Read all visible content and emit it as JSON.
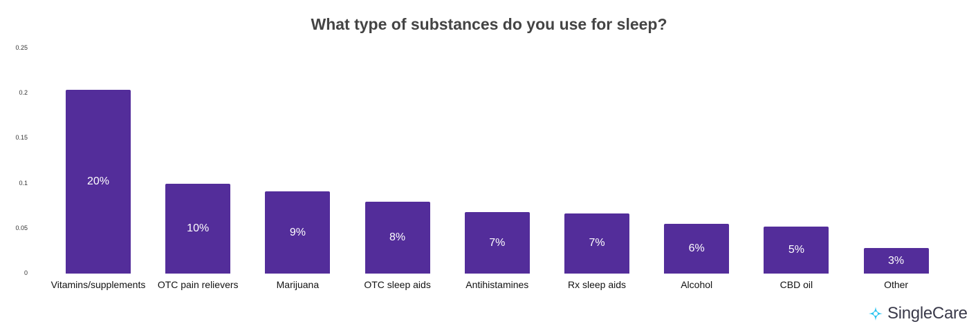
{
  "chart_data": {
    "type": "bar",
    "title": "What type of substances do you use for sleep?",
    "xlabel": "",
    "ylabel": "",
    "ylim": [
      0,
      0.25
    ],
    "yticks": [
      "0",
      "0.05",
      "0.1",
      "0.15",
      "0.2",
      "0.25"
    ],
    "grid": false,
    "legend": null,
    "categories": [
      "Vitamins/supplements",
      "OTC pain relievers",
      "Marijuana",
      "OTC sleep aids",
      "Antihistamines",
      "Rx sleep aids",
      "Alcohol",
      "CBD oil",
      "Other"
    ],
    "values": [
      0.204,
      0.1,
      0.091,
      0.08,
      0.068,
      0.067,
      0.055,
      0.052,
      0.028
    ],
    "data_labels": [
      "20%",
      "10%",
      "9%",
      "8%",
      "7%",
      "7%",
      "6%",
      "5%",
      "3%"
    ],
    "bar_color": "#532d9a"
  },
  "brand": {
    "name": "SingleCare",
    "icon": "singlecare-star-icon",
    "icon_color": "#2ec4f0"
  }
}
